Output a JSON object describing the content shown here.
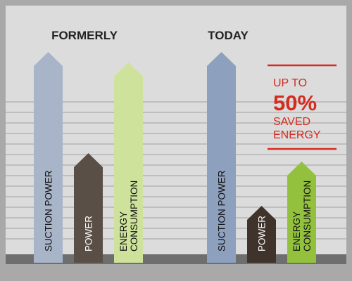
{
  "chart_data": {
    "type": "bar",
    "value_axis": "relative height, unlabeled",
    "grid": true,
    "legend": "none",
    "groups": [
      {
        "title": "FORMERLY",
        "bars": [
          {
            "label": "SUCTION POWER",
            "value": 100,
            "color": "#a8b4c8"
          },
          {
            "label": "POWER",
            "value": 52,
            "color": "#5a4f47"
          },
          {
            "label": "ENERGY CONSUMPTION",
            "value": 95,
            "color": "#cfe29b"
          }
        ]
      },
      {
        "title": "TODAY",
        "bars": [
          {
            "label": "SUCTION POWER",
            "value": 100,
            "color": "#8da0bd"
          },
          {
            "label": "POWER",
            "value": 27,
            "color": "#3f332c"
          },
          {
            "label": "ENERGY CONSUMPTION",
            "value": 48,
            "color": "#93c13e"
          }
        ]
      }
    ],
    "annotation": {
      "lines": [
        "UP TO",
        "50%",
        "SAVED",
        "ENERGY"
      ],
      "color": "#d52b1e"
    }
  },
  "colors": {
    "panel": "#dcdcdc",
    "frame": "#a9a9a9",
    "grid": "#b4b4b4",
    "baseline": "#6e6e6e",
    "title": "#222222",
    "label_dark": "#111111",
    "label_light": "#ffffff"
  }
}
